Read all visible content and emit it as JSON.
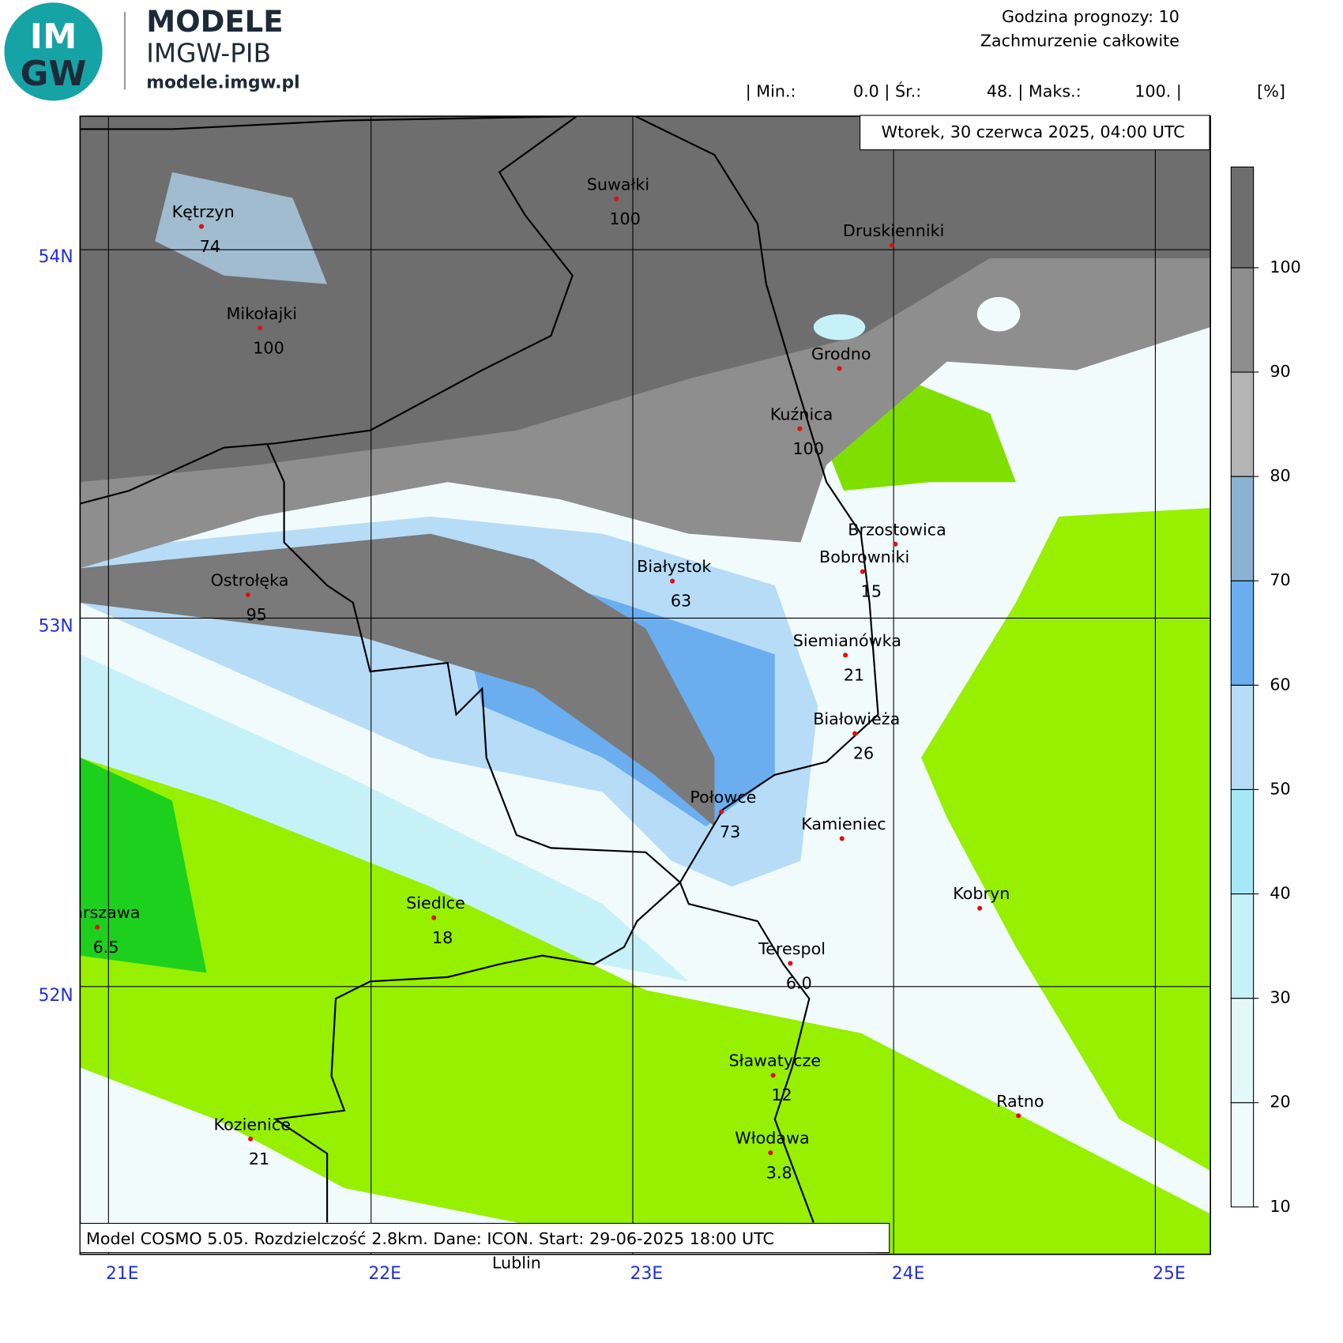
{
  "header": {
    "brand": "MODELE",
    "subbrand": "IMGW-PIB",
    "url": "modele.imgw.pl",
    "logo_top": "IM",
    "logo_bottom": "GW",
    "forecast_hour": "Godzina prognozy: 10",
    "parameter": "Zachmurzenie całkowite",
    "stats": [
      "| Min.:",
      "0.0 | Śr.:",
      "48. | Maks.:",
      "100. |"
    ],
    "unit": "[%]"
  },
  "date": "Wtorek, 30 czerwca 2025, 04:00 UTC",
  "footer": "Model COSMO 5.05. Rozdzielczość 2.8km. Dane: ICON. Start: 29-06-2025 18:00 UTC",
  "lat_labels": [
    "54N",
    "53N",
    "52N"
  ],
  "lon_labels": [
    "21E",
    "22E",
    "23E",
    "24E",
    "25E"
  ],
  "colorbar": {
    "ticks": [
      10,
      20,
      30,
      40,
      50,
      60,
      70,
      80,
      90,
      100
    ],
    "colors": [
      "#f2fbfc",
      "#e3f8fb",
      "#c6f1f8",
      "#a6e9f6",
      "#b6dcf8",
      "#6aaef0",
      "#8bb2d2",
      "#b4b4b4",
      "#8e8e8e",
      "#6e6e6e"
    ]
  },
  "places": [
    {
      "name": "Kętrzyn",
      "value": "74"
    },
    {
      "name": "Mikołajki",
      "value": "100"
    },
    {
      "name": "Suwałki",
      "value": "100"
    },
    {
      "name": "Druskienniki"
    },
    {
      "name": "Grodno"
    },
    {
      "name": "Kuźnica",
      "value": "100"
    },
    {
      "name": "Brzostowica"
    },
    {
      "name": "Bobrowniki",
      "value": "15"
    },
    {
      "name": "Białystok",
      "value": "63"
    },
    {
      "name": "Ostrołęka",
      "value": "95"
    },
    {
      "name": "Siemianówka",
      "value": "21"
    },
    {
      "name": "Białowieża",
      "value": "26"
    },
    {
      "name": "Połowce",
      "value": "73"
    },
    {
      "name": "Kamieniec"
    },
    {
      "name": "Kobryn"
    },
    {
      "name": "Warszawa",
      "value": "6.5"
    },
    {
      "name": "Siedlce",
      "value": "18"
    },
    {
      "name": "Terespol",
      "value": "6.0"
    },
    {
      "name": "Sławatycze",
      "value": "12"
    },
    {
      "name": "Ratno"
    },
    {
      "name": "Kozienice",
      "value": "21"
    },
    {
      "name": "Włodawa",
      "value": "3.8"
    }
  ],
  "extra_label": "Lublin"
}
